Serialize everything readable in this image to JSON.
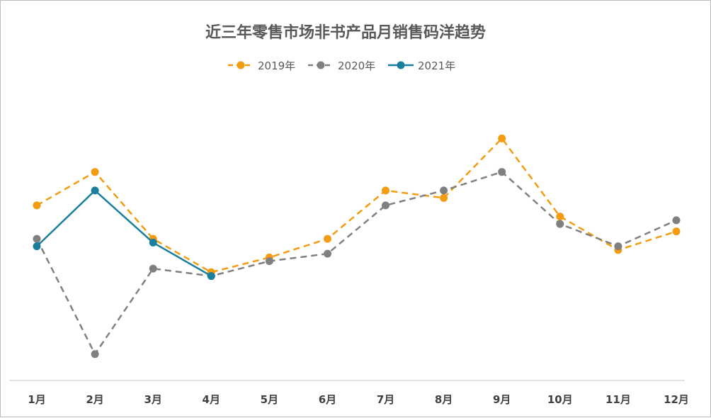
{
  "chart_data": {
    "type": "line",
    "title": "近三年零售市场非书产品月销售码洋趋势",
    "categories": [
      "1月",
      "2月",
      "3月",
      "4月",
      "5月",
      "6月",
      "7月",
      "8月",
      "9月",
      "10月",
      "11月",
      "12月"
    ],
    "series": [
      {
        "name": "2019年",
        "color": "#f39c12",
        "dashed": true,
        "values": [
          64,
          73,
          55,
          46,
          50,
          55,
          68,
          66,
          82,
          61,
          52,
          57
        ]
      },
      {
        "name": "2020年",
        "color": "#808080",
        "dashed": true,
        "values": [
          55,
          24,
          47,
          45,
          49,
          51,
          64,
          68,
          73,
          59,
          53,
          60
        ]
      },
      {
        "name": "2021年",
        "color": "#1a7f9c",
        "dashed": false,
        "values": [
          53,
          68,
          54,
          45,
          null,
          null,
          null,
          null,
          null,
          null,
          null,
          null
        ]
      }
    ],
    "ylim": [
      15,
      100
    ],
    "grid": false,
    "legend_position": "top"
  }
}
